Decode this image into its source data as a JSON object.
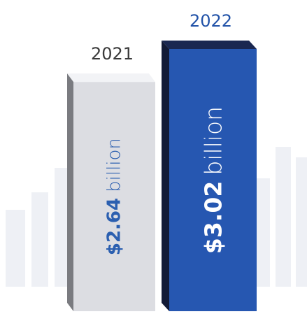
{
  "chart_data": {
    "type": "bar",
    "categories": [
      "2021",
      "2022"
    ],
    "values": [
      2.64,
      3.02
    ],
    "value_labels": [
      "$2.64",
      "$3.02"
    ],
    "unit": "billion",
    "title": "",
    "xlabel": "",
    "ylabel": "",
    "ylim": [
      0,
      3.02
    ],
    "grid": false,
    "legend": "none"
  },
  "colors": {
    "bar_2021_face": "#dcdde2",
    "bar_2021_side": "#7a7b80",
    "bar_2021_top": "#f2f3f6",
    "bar_2021_text": "#2b5fb0",
    "bar_2021_unit": "#2b5fb0",
    "bar_2022_face": "#2657b1",
    "bar_2022_side": "#121a36",
    "bar_2022_top": "#1a2750",
    "bar_2022_text": "#ffffff",
    "year_2021": "#3a3a3a",
    "year_2022": "#2152a8",
    "background_bars": "#eef0f5"
  }
}
